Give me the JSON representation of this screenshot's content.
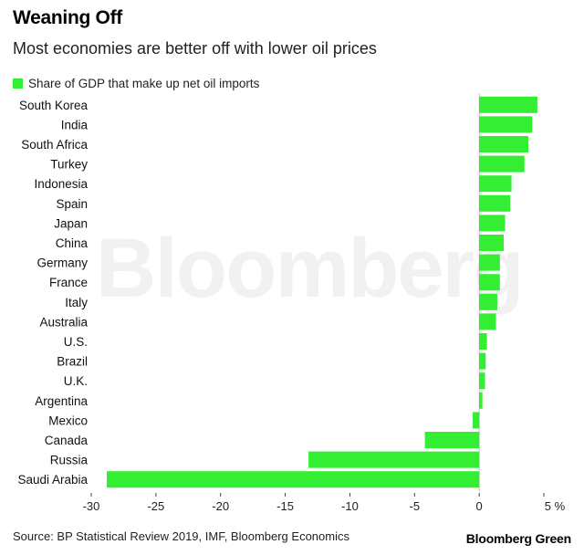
{
  "title": "Weaning Off",
  "subtitle": "Most economies are better off with lower oil prices",
  "source": "Source: BP Statistical Review 2019, IMF, Bloomberg Economics",
  "brand": "Bloomberg Green",
  "watermark": "Bloomberg",
  "colors": {
    "bar": "#33ee33",
    "axis": "#444444"
  },
  "chart_data": {
    "type": "bar",
    "orientation": "horizontal",
    "series": [
      {
        "name": "Share of GDP that make up net oil imports",
        "values": [
          4.5,
          4.1,
          3.8,
          3.5,
          2.5,
          2.4,
          2.0,
          1.9,
          1.6,
          1.6,
          1.4,
          1.3,
          0.6,
          0.5,
          0.45,
          0.25,
          -0.5,
          -4.2,
          -13.2,
          -28.8
        ]
      }
    ],
    "categories": [
      "South Korea",
      "India",
      "South Africa",
      "Turkey",
      "Indonesia",
      "Spain",
      "Japan",
      "China",
      "Germany",
      "France",
      "Italy",
      "Australia",
      "U.S.",
      "Brazil",
      "U.K.",
      "Argentina",
      "Mexico",
      "Canada",
      "Russia",
      "Saudi Arabia"
    ],
    "xlim": [
      -30,
      5
    ],
    "xticks": [
      "-30",
      "-25",
      "-20",
      "-15",
      "-10",
      "-5",
      "0",
      "5 %"
    ],
    "xtick_values": [
      -30,
      -25,
      -20,
      -15,
      -10,
      -5,
      0,
      5
    ],
    "legend": "top-left",
    "grid": false
  }
}
